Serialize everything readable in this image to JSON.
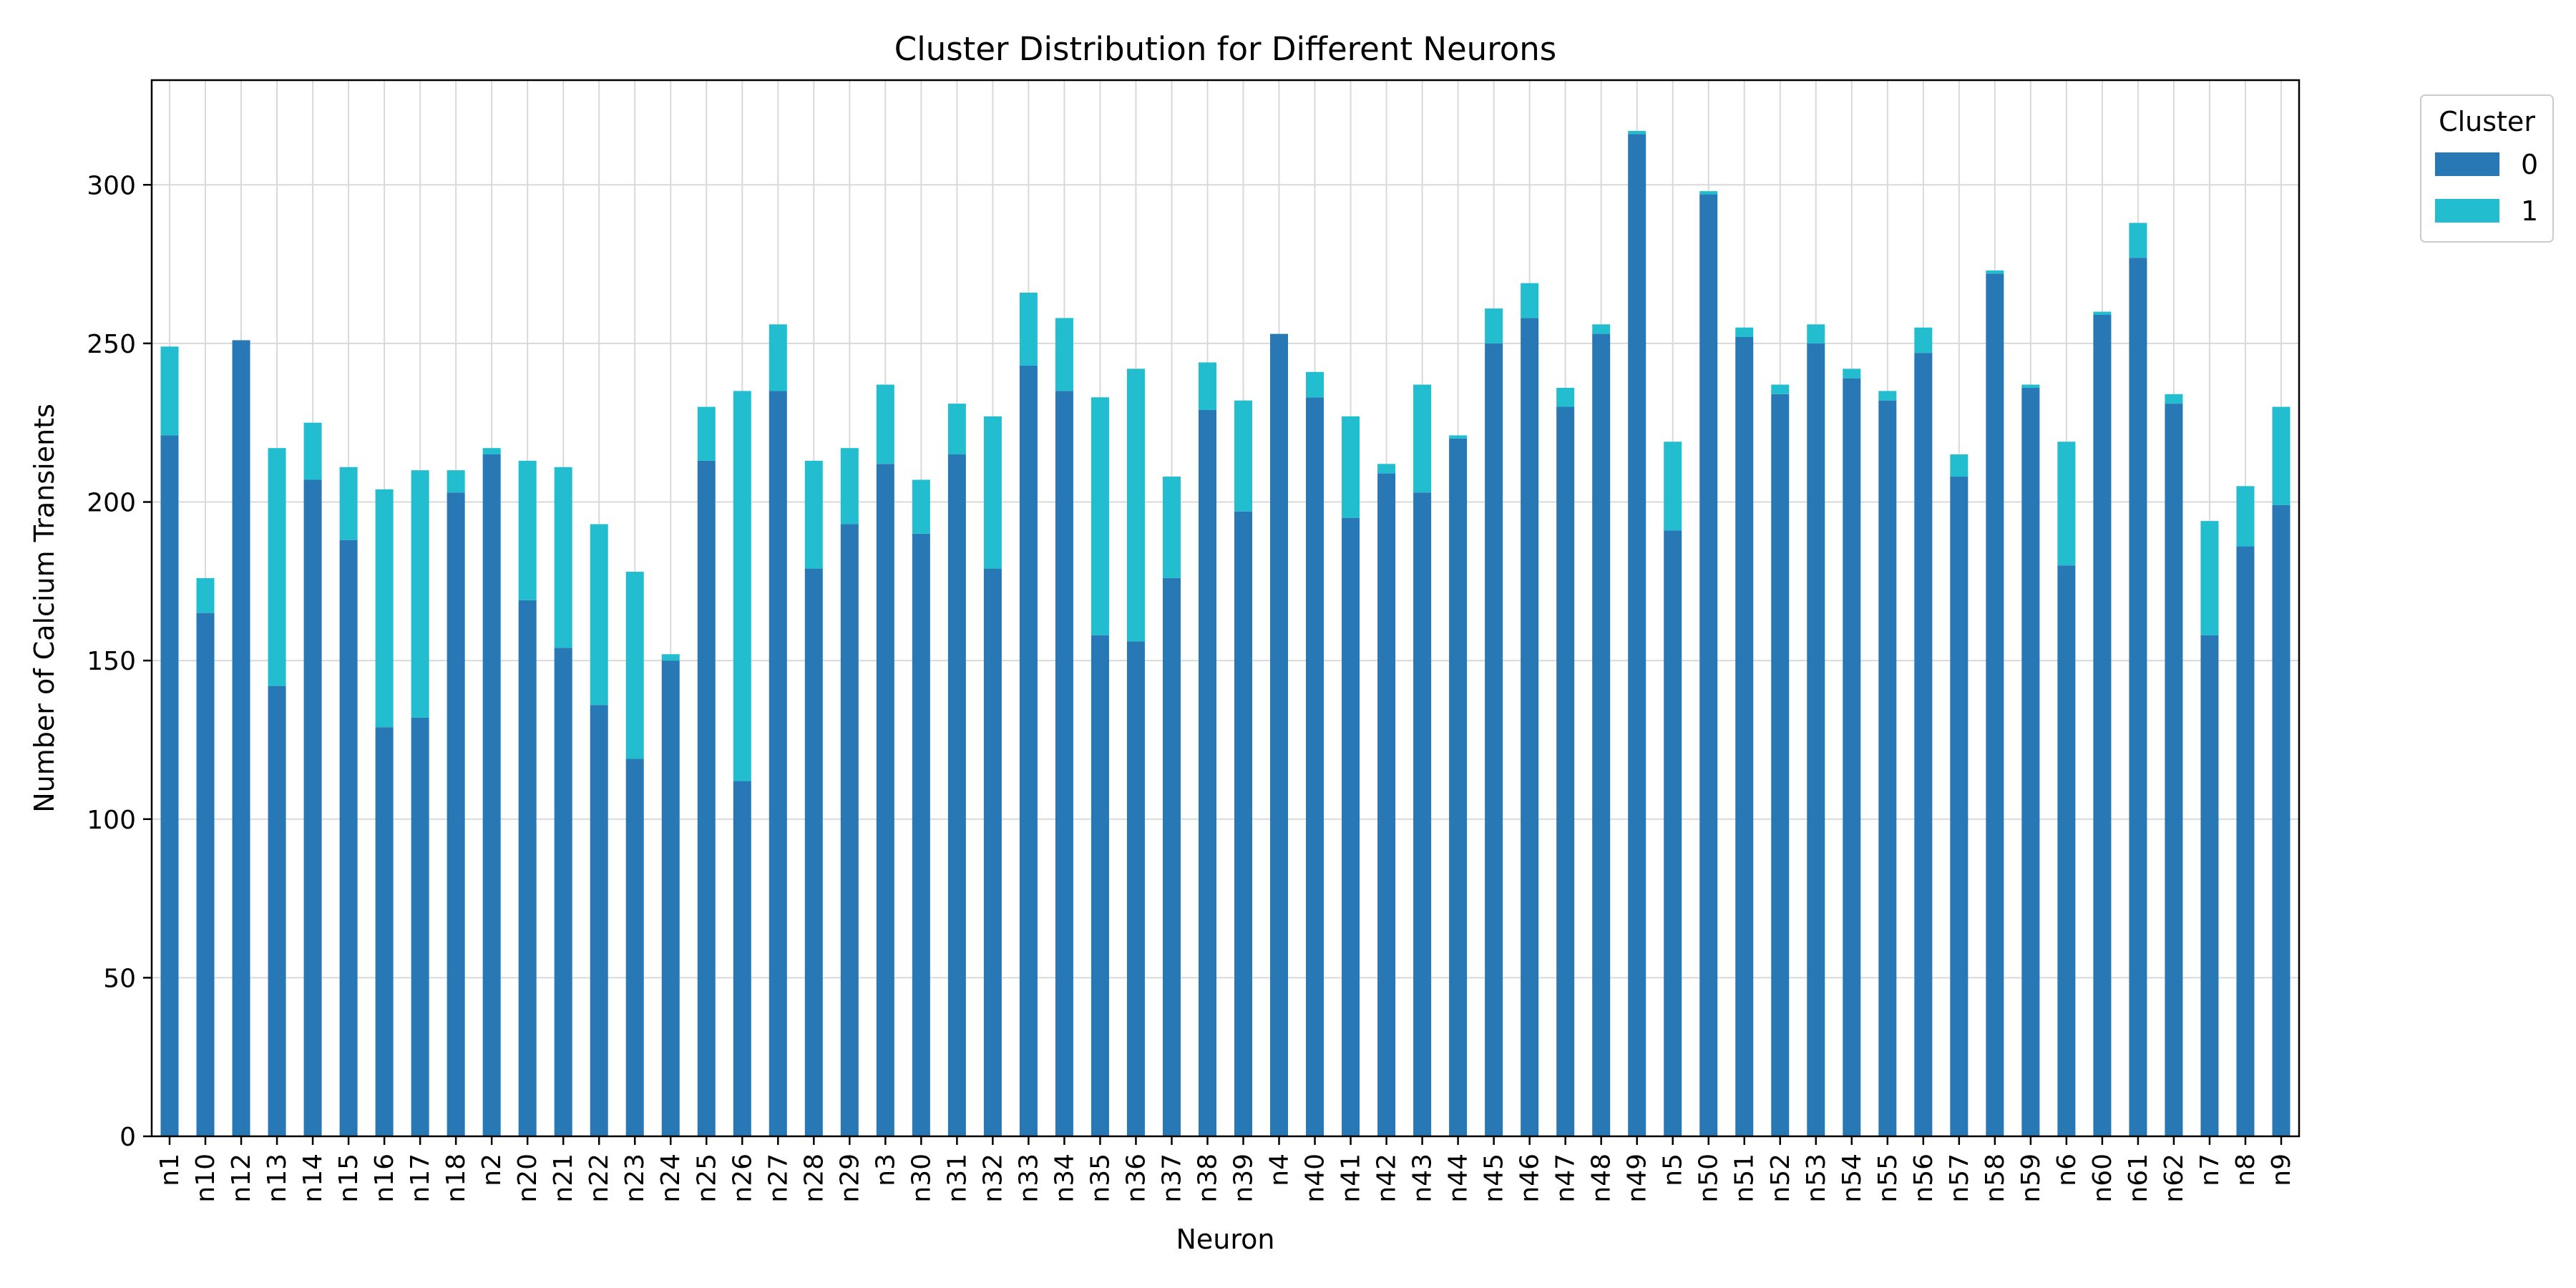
{
  "chart_data": {
    "type": "bar",
    "stacked": true,
    "title": "Cluster Distribution for Different Neurons",
    "xlabel": "Neuron",
    "ylabel": "Number of Calcium Transients",
    "ylim": [
      0,
      333
    ],
    "yticks": [
      0,
      50,
      100,
      150,
      200,
      250,
      300
    ],
    "grid": true,
    "legend": {
      "title": "Cluster",
      "placement": "outside-top-right"
    },
    "categories": [
      "n1",
      "n10",
      "n12",
      "n13",
      "n14",
      "n15",
      "n16",
      "n17",
      "n18",
      "n2",
      "n20",
      "n21",
      "n22",
      "n23",
      "n24",
      "n25",
      "n26",
      "n27",
      "n28",
      "n29",
      "n3",
      "n30",
      "n31",
      "n32",
      "n33",
      "n34",
      "n35",
      "n36",
      "n37",
      "n38",
      "n39",
      "n4",
      "n40",
      "n41",
      "n42",
      "n43",
      "n44",
      "n45",
      "n46",
      "n47",
      "n48",
      "n49",
      "n5",
      "n50",
      "n51",
      "n52",
      "n53",
      "n54",
      "n55",
      "n56",
      "n57",
      "n58",
      "n59",
      "n6",
      "n60",
      "n61",
      "n62",
      "n7",
      "n8",
      "n9"
    ],
    "series": [
      {
        "name": "0",
        "color": "#2778b5",
        "values": [
          221,
          165,
          251,
          142,
          207,
          188,
          129,
          132,
          203,
          215,
          169,
          154,
          136,
          119,
          150,
          213,
          112,
          235,
          179,
          193,
          212,
          190,
          215,
          179,
          243,
          235,
          158,
          156,
          176,
          229,
          197,
          253,
          233,
          195,
          209,
          203,
          220,
          250,
          258,
          230,
          253,
          316,
          191,
          297,
          252,
          234,
          250,
          239,
          232,
          247,
          208,
          272,
          236,
          180,
          259,
          277,
          231,
          158,
          186,
          199
        ]
      },
      {
        "name": "1",
        "color": "#22becf",
        "values": [
          28,
          11,
          0,
          75,
          18,
          23,
          75,
          78,
          7,
          2,
          44,
          57,
          57,
          59,
          2,
          17,
          123,
          21,
          34,
          24,
          25,
          17,
          16,
          48,
          23,
          23,
          75,
          86,
          32,
          15,
          35,
          0,
          8,
          32,
          3,
          34,
          1,
          11,
          11,
          6,
          3,
          1,
          28,
          1,
          3,
          3,
          6,
          3,
          3,
          8,
          7,
          1,
          1,
          39,
          1,
          11,
          3,
          36,
          19,
          31
        ]
      }
    ]
  }
}
